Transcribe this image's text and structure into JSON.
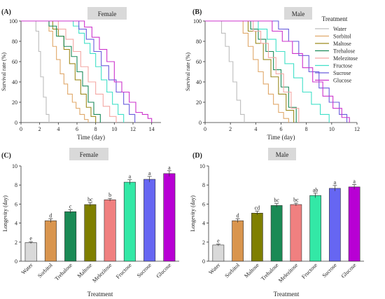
{
  "chart_data": [
    {
      "panel": "(A)",
      "title": "Female",
      "type": "line",
      "xlabel": "Time (day)",
      "ylabel": "Survival rate (%)",
      "xlim": [
        0,
        15
      ],
      "ylim": [
        0,
        100
      ],
      "xticks": [
        0,
        2,
        4,
        6,
        8,
        10,
        12,
        14
      ],
      "yticks": [
        0,
        20,
        40,
        60,
        80,
        100
      ],
      "grid": false,
      "series": [
        {
          "name": "Water",
          "color": "#bdbdbd",
          "x": [
            0,
            1.3,
            1.6,
            1.9,
            2.1,
            2.4,
            2.7,
            3.0
          ],
          "y": [
            100,
            100,
            90,
            70,
            45,
            25,
            8,
            0
          ]
        },
        {
          "name": "Sorbitol",
          "color": "#e0a86a",
          "x": [
            0,
            2.5,
            3.0,
            3.4,
            3.8,
            4.2,
            4.6,
            5.0,
            5.5,
            5.9,
            6.3,
            6.8,
            7.2
          ],
          "y": [
            100,
            100,
            90,
            75,
            62,
            48,
            38,
            28,
            20,
            14,
            8,
            3,
            0
          ]
        },
        {
          "name": "Maltose",
          "color": "#9c8a1f",
          "x": [
            0,
            2.8,
            3.4,
            4.0,
            4.6,
            5.2,
            5.8,
            6.4,
            7.0,
            7.5,
            8.0
          ],
          "y": [
            100,
            100,
            92,
            85,
            72,
            58,
            42,
            28,
            15,
            6,
            0
          ]
        },
        {
          "name": "Trehalose",
          "color": "#1b8a5a",
          "x": [
            0,
            2.2,
            3.0,
            3.8,
            4.6,
            5.4,
            6.0,
            6.6,
            7.2,
            7.8,
            8.5
          ],
          "y": [
            100,
            100,
            95,
            85,
            75,
            65,
            50,
            36,
            20,
            8,
            0
          ]
        },
        {
          "name": "Melezitose",
          "color": "#f4a7a3",
          "x": [
            0,
            3.2,
            4.0,
            4.8,
            5.6,
            6.4,
            7.2,
            8.0,
            8.8,
            9.5,
            10.2
          ],
          "y": [
            100,
            100,
            92,
            82,
            70,
            55,
            40,
            28,
            16,
            6,
            0
          ]
        },
        {
          "name": "Fructose",
          "color": "#40e0c8",
          "x": [
            0,
            5.0,
            5.6,
            6.2,
            6.8,
            7.4,
            8.0,
            8.6,
            9.2,
            9.8,
            10.4,
            11.0
          ],
          "y": [
            100,
            100,
            95,
            88,
            78,
            68,
            55,
            42,
            30,
            18,
            8,
            0
          ]
        },
        {
          "name": "Sucrose",
          "color": "#6a5cdc",
          "x": [
            0,
            5.5,
            6.2,
            7.0,
            7.8,
            8.6,
            9.4,
            10.2,
            11.0,
            11.6,
            12.2
          ],
          "y": [
            100,
            100,
            92,
            82,
            70,
            56,
            42,
            30,
            18,
            8,
            0
          ]
        },
        {
          "name": "Glucose",
          "color": "#cc33cc",
          "x": [
            0,
            6.0,
            6.8,
            7.6,
            8.4,
            9.2,
            10.0,
            10.8,
            11.6,
            12.3,
            13.0,
            13.6,
            14.0
          ],
          "y": [
            100,
            100,
            94,
            84,
            72,
            60,
            40,
            30,
            20,
            10,
            8,
            4,
            0
          ]
        }
      ],
      "legend": {
        "title": "Treatment",
        "placement": "right"
      }
    },
    {
      "panel": "(B)",
      "title": "Male",
      "type": "line",
      "xlabel": "Time (day)",
      "ylabel": "Survival rate (%)",
      "xlim": [
        0,
        12
      ],
      "ylim": [
        0,
        100
      ],
      "xticks": [
        0,
        2,
        4,
        6,
        8,
        10,
        12
      ],
      "yticks": [
        0,
        20,
        40,
        60,
        80,
        100
      ],
      "grid": false,
      "series": [
        {
          "name": "Water",
          "color": "#bdbdbd",
          "x": [
            0,
            1.0,
            1.3,
            1.6,
            1.9,
            2.2,
            2.5,
            2.8,
            3.1
          ],
          "y": [
            100,
            100,
            88,
            75,
            60,
            40,
            22,
            8,
            0
          ]
        },
        {
          "name": "Sorbitol",
          "color": "#e0a86a",
          "x": [
            0,
            2.5,
            3.0,
            3.4,
            3.8,
            4.2,
            4.6,
            5.0,
            5.4,
            5.8,
            6.2,
            6.6
          ],
          "y": [
            100,
            100,
            88,
            75,
            62,
            50,
            38,
            28,
            18,
            10,
            4,
            0
          ]
        },
        {
          "name": "Maltose",
          "color": "#9c8a1f",
          "x": [
            0,
            2.8,
            3.4,
            4.0,
            4.6,
            5.2,
            5.8,
            6.4,
            7.0
          ],
          "y": [
            100,
            100,
            90,
            78,
            62,
            45,
            28,
            12,
            0
          ]
        },
        {
          "name": "Trehalose",
          "color": "#1b8a5a",
          "x": [
            0,
            3.0,
            3.6,
            4.2,
            4.8,
            5.4,
            6.0,
            6.6,
            7.2
          ],
          "y": [
            100,
            100,
            92,
            82,
            70,
            52,
            35,
            15,
            0
          ]
        },
        {
          "name": "Melezitose",
          "color": "#f4a7a3",
          "x": [
            0,
            3.2,
            3.8,
            4.4,
            5.0,
            5.6,
            6.2,
            6.8,
            7.4
          ],
          "y": [
            100,
            100,
            90,
            78,
            64,
            48,
            30,
            14,
            0
          ]
        },
        {
          "name": "Fructose",
          "color": "#40e0c8",
          "x": [
            0,
            3.5,
            4.2,
            4.9,
            5.6,
            6.3,
            7.0,
            7.7,
            8.4,
            9.1,
            9.8
          ],
          "y": [
            100,
            100,
            92,
            82,
            70,
            58,
            44,
            30,
            18,
            8,
            0
          ]
        },
        {
          "name": "Sucrose",
          "color": "#6a5cdc",
          "x": [
            0,
            5.0,
            5.8,
            6.6,
            7.4,
            8.2,
            9.0,
            9.8,
            10.6,
            11.2
          ],
          "y": [
            100,
            100,
            92,
            80,
            66,
            50,
            34,
            20,
            8,
            0
          ]
        },
        {
          "name": "Glucose",
          "color": "#cc33cc",
          "x": [
            0,
            4.5,
            5.3,
            6.1,
            6.9,
            7.7,
            8.5,
            9.3,
            10.1,
            10.8,
            11.4
          ],
          "y": [
            100,
            100,
            90,
            80,
            68,
            54,
            40,
            26,
            14,
            5,
            0
          ]
        }
      ],
      "legend": {
        "title": "Treatment",
        "placement": "right"
      }
    },
    {
      "panel": "(C)",
      "title": "Female",
      "type": "bar",
      "xlabel": "Treatment",
      "ylabel": "Longevity (day)",
      "ylim": [
        0,
        10
      ],
      "yticks": [
        0,
        2,
        4,
        6,
        8,
        10
      ],
      "categories": [
        "Water",
        "Sorbitol",
        "Trehalose",
        "Maltose",
        "Melezitose",
        "Fructose",
        "Sucrose",
        "Glucose"
      ],
      "values": [
        1.95,
        4.25,
        5.2,
        5.95,
        6.45,
        8.3,
        8.6,
        9.2
      ],
      "errors": [
        0.1,
        0.2,
        0.2,
        0.2,
        0.15,
        0.25,
        0.3,
        0.3
      ],
      "letters": [
        "e",
        "d",
        "c",
        "bc",
        "b",
        "a",
        "a",
        "a"
      ],
      "colors": [
        "#d9d9d9",
        "#d9954e",
        "#1a8a55",
        "#7f7f00",
        "#f08080",
        "#33e8a6",
        "#6666f2",
        "#b800d4"
      ]
    },
    {
      "panel": "(D)",
      "title": "Male",
      "type": "bar",
      "xlabel": "Treatment",
      "ylabel": "Longevity (day)",
      "ylim": [
        0,
        10
      ],
      "yticks": [
        0,
        2,
        4,
        6,
        8,
        10
      ],
      "categories": [
        "Water",
        "Sorbitol",
        "Maltose",
        "Trehalose",
        "Melezitose",
        "Fructose",
        "Sucrose",
        "Glucose"
      ],
      "values": [
        1.7,
        4.25,
        5.05,
        5.85,
        5.95,
        6.9,
        7.65,
        7.8
      ],
      "errors": [
        0.1,
        0.2,
        0.2,
        0.2,
        0.15,
        0.25,
        0.3,
        0.25
      ],
      "letters": [
        "e",
        "d",
        "cd",
        "bc",
        "bc",
        "ab",
        "a",
        "a"
      ],
      "colors": [
        "#d9d9d9",
        "#d9954e",
        "#7f7f00",
        "#1a8a55",
        "#f08080",
        "#33e8a6",
        "#6666f2",
        "#b800d4"
      ]
    }
  ]
}
